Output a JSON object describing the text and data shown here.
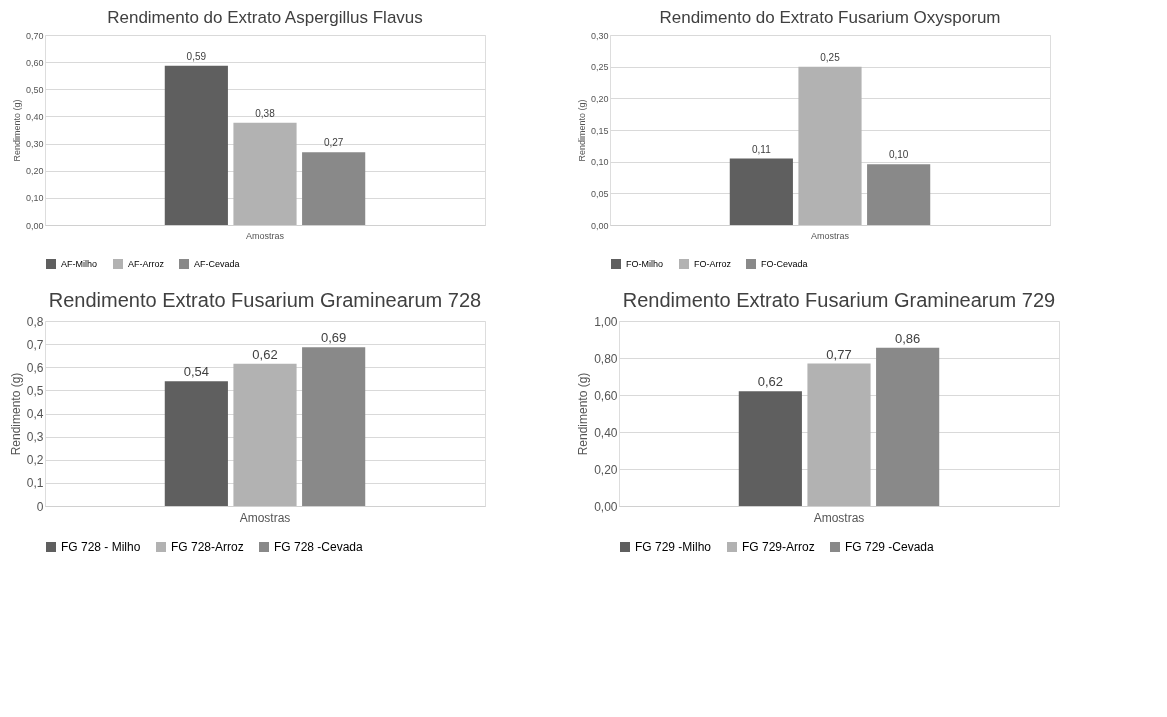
{
  "chart_data": [
    {
      "type": "bar",
      "title": "Rendimento do Extrato Aspergillus Flavus",
      "ylabel": "Rendimento (g)",
      "categories": [
        "Amostras"
      ],
      "series": [
        {
          "name": "AF-Milho",
          "color": "#5f5f5f",
          "values": [
            0.587
          ],
          "value_labels": [
            "0,59"
          ]
        },
        {
          "name": "AF-Arroz",
          "color": "#b2b2b2",
          "values": [
            0.377
          ],
          "value_labels": [
            "0,38"
          ]
        },
        {
          "name": "AF-Cevada",
          "color": "#898989",
          "values": [
            0.268
          ],
          "value_labels": [
            "0,27"
          ]
        }
      ],
      "ylim": [
        0,
        0.7
      ],
      "yticks": [
        {
          "value": 0,
          "label": "0,00"
        },
        {
          "value": 0.1,
          "label": "0,10"
        },
        {
          "value": 0.2,
          "label": "0,20"
        },
        {
          "value": 0.3,
          "label": "0,30"
        },
        {
          "value": 0.4,
          "label": "0,40"
        },
        {
          "value": 0.5,
          "label": "0,50"
        },
        {
          "value": 0.6,
          "label": "0,60"
        },
        {
          "value": 0.7,
          "label": "0,70"
        }
      ],
      "grid": "y",
      "legend": "bottom"
    },
    {
      "type": "bar",
      "title": "Rendimento do Extrato Fusarium Oxysporum",
      "ylabel": "Rendimento (g)",
      "categories": [
        "Amostras"
      ],
      "series": [
        {
          "name": "FO-Milho",
          "color": "#5f5f5f",
          "values": [
            0.105
          ],
          "value_labels": [
            "0,11"
          ]
        },
        {
          "name": "FO-Arroz",
          "color": "#b2b2b2",
          "values": [
            0.25
          ],
          "value_labels": [
            "0,25"
          ]
        },
        {
          "name": "FO-Cevada",
          "color": "#898989",
          "values": [
            0.096
          ],
          "value_labels": [
            "0,10"
          ]
        }
      ],
      "ylim": [
        0,
        0.3
      ],
      "yticks": [
        {
          "value": 0,
          "label": "0,00"
        },
        {
          "value": 0.05,
          "label": "0,05"
        },
        {
          "value": 0.1,
          "label": "0,10"
        },
        {
          "value": 0.15,
          "label": "0,15"
        },
        {
          "value": 0.2,
          "label": "0,20"
        },
        {
          "value": 0.25,
          "label": "0,25"
        },
        {
          "value": 0.3,
          "label": "0,30"
        }
      ],
      "grid": "y",
      "legend": "bottom"
    },
    {
      "type": "bar",
      "title": "Rendimento Extrato Fusarium Graminearum 728",
      "ylabel": "Rendimento (g)",
      "categories": [
        "Amostras"
      ],
      "series": [
        {
          "name": "FG 728 - Milho",
          "color": "#5f5f5f",
          "values": [
            0.54
          ],
          "value_labels": [
            "0,54"
          ]
        },
        {
          "name": "FG 728-Arroz",
          "color": "#b2b2b2",
          "values": [
            0.615
          ],
          "value_labels": [
            "0,62"
          ]
        },
        {
          "name": "FG 728 -Cevada",
          "color": "#898989",
          "values": [
            0.686
          ],
          "value_labels": [
            "0,69"
          ]
        }
      ],
      "ylim": [
        0,
        0.8
      ],
      "yticks": [
        0,
        {
          "value": 0.1,
          "label": "0,1"
        },
        {
          "value": 0.2,
          "label": "0,2"
        },
        {
          "value": 0.3,
          "label": "0,3"
        },
        {
          "value": 0.4,
          "label": "0,4"
        },
        {
          "value": 0.5,
          "label": "0,5"
        },
        {
          "value": 0.6,
          "label": "0,6"
        },
        {
          "value": 0.7,
          "label": "0,7"
        },
        {
          "value": 0.8,
          "label": "0,8"
        }
      ],
      "grid": "y",
      "legend": "bottom"
    },
    {
      "type": "bar",
      "title": "Rendimento Extrato Fusarium Graminearum 729",
      "ylabel": "Rendimento (g)",
      "categories": [
        "Amostras"
      ],
      "series": [
        {
          "name": "FG 729 -Milho",
          "color": "#5f5f5f",
          "values": [
            0.62
          ],
          "value_labels": [
            "0,62"
          ]
        },
        {
          "name": "FG 729-Arroz",
          "color": "#b2b2b2",
          "values": [
            0.77
          ],
          "value_labels": [
            "0,77"
          ]
        },
        {
          "name": "FG 729 -Cevada",
          "color": "#898989",
          "values": [
            0.855
          ],
          "value_labels": [
            "0,86"
          ]
        }
      ],
      "ylim": [
        0,
        1.0
      ],
      "yticks": [
        {
          "value": 0,
          "label": "0,00"
        },
        {
          "value": 0.2,
          "label": "0,20"
        },
        {
          "value": 0.4,
          "label": "0,40"
        },
        {
          "value": 0.6,
          "label": "0,60"
        },
        {
          "value": 0.8,
          "label": "0,80"
        },
        {
          "value": 1.0,
          "label": "1,00"
        }
      ],
      "grid": "y",
      "legend": "bottom"
    }
  ]
}
